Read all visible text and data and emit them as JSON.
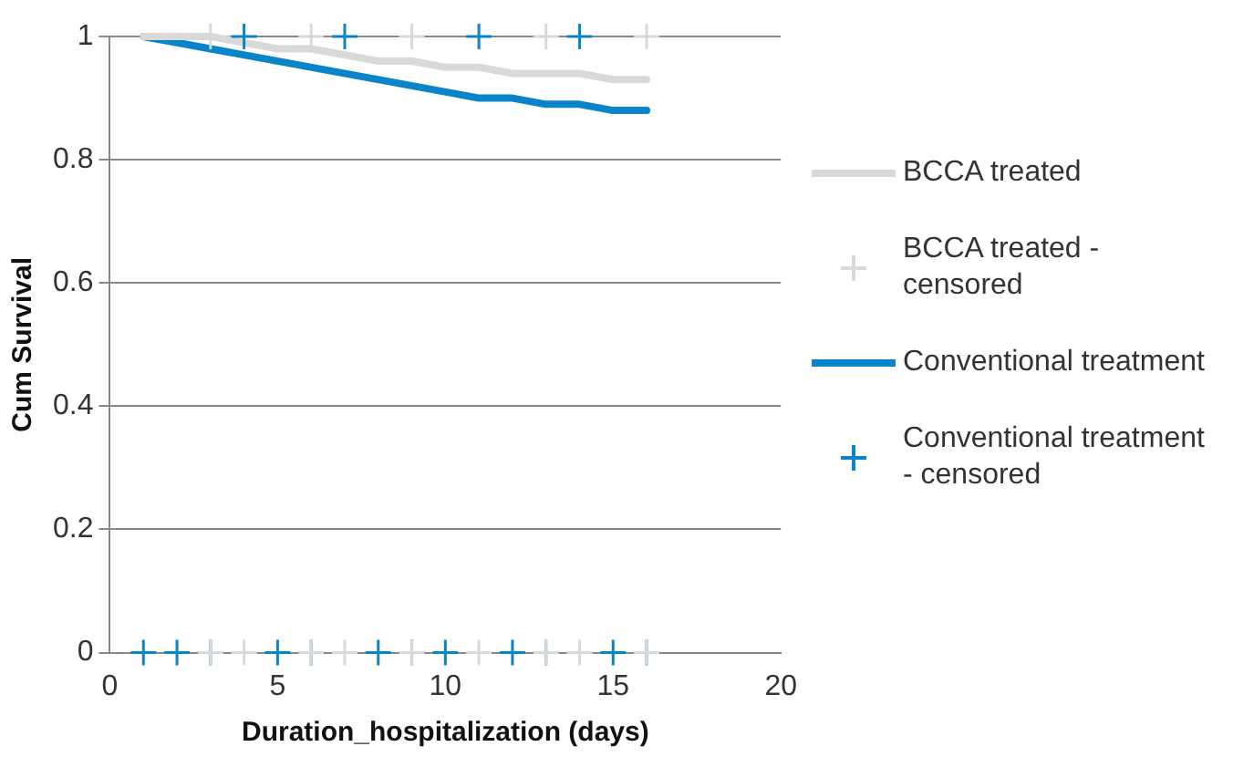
{
  "chart_data": {
    "type": "line",
    "xlabel": "Duration_hospitalization (days)",
    "ylabel": "Cum Survival",
    "xlim": [
      0,
      20
    ],
    "xticks": [
      0,
      5,
      10,
      15,
      20
    ],
    "ylim": [
      0,
      1
    ],
    "yticks": [
      0,
      0.2,
      0.4,
      0.6,
      0.8,
      1
    ],
    "grid": "y",
    "legend": "right",
    "line_style": "solid",
    "series": [
      {
        "name": "BCCA treated",
        "type": "line",
        "color": "#d9d9d9",
        "marker": "none",
        "x": [
          1,
          3,
          5,
          6,
          8,
          9,
          10,
          11,
          12,
          14,
          15,
          16
        ],
        "values": [
          1,
          1,
          0.98,
          0.98,
          0.96,
          0.96,
          0.95,
          0.95,
          0.94,
          0.94,
          0.93,
          0.93
        ]
      },
      {
        "name": "BCCA treated - censored",
        "type": "scatter",
        "color": "#d9d9d9",
        "marker": "cross",
        "x": [
          3,
          6,
          9,
          13,
          16,
          3,
          4,
          6,
          7,
          9,
          11,
          13,
          14,
          16
        ],
        "values": [
          1,
          1,
          1,
          1,
          1,
          0,
          0,
          0,
          0,
          0,
          0,
          0,
          0,
          0
        ]
      },
      {
        "name": "Conventional treatment",
        "type": "line",
        "color": "#0a84c8",
        "marker": "none",
        "x": [
          1,
          11,
          12,
          13,
          14,
          15,
          16
        ],
        "values": [
          1,
          0.9,
          0.9,
          0.89,
          0.89,
          0.88,
          0.88
        ]
      },
      {
        "name": "Conventional treatment - censored",
        "type": "scatter",
        "color": "#0a84c8",
        "marker": "cross",
        "x": [
          4,
          7,
          11,
          14,
          1,
          2,
          3,
          5,
          6,
          8,
          9,
          10,
          12,
          13,
          15,
          16
        ],
        "values": [
          1,
          1,
          1,
          1,
          0,
          0,
          0,
          0,
          0,
          0,
          0,
          0,
          0,
          0,
          0,
          0
        ]
      }
    ]
  }
}
